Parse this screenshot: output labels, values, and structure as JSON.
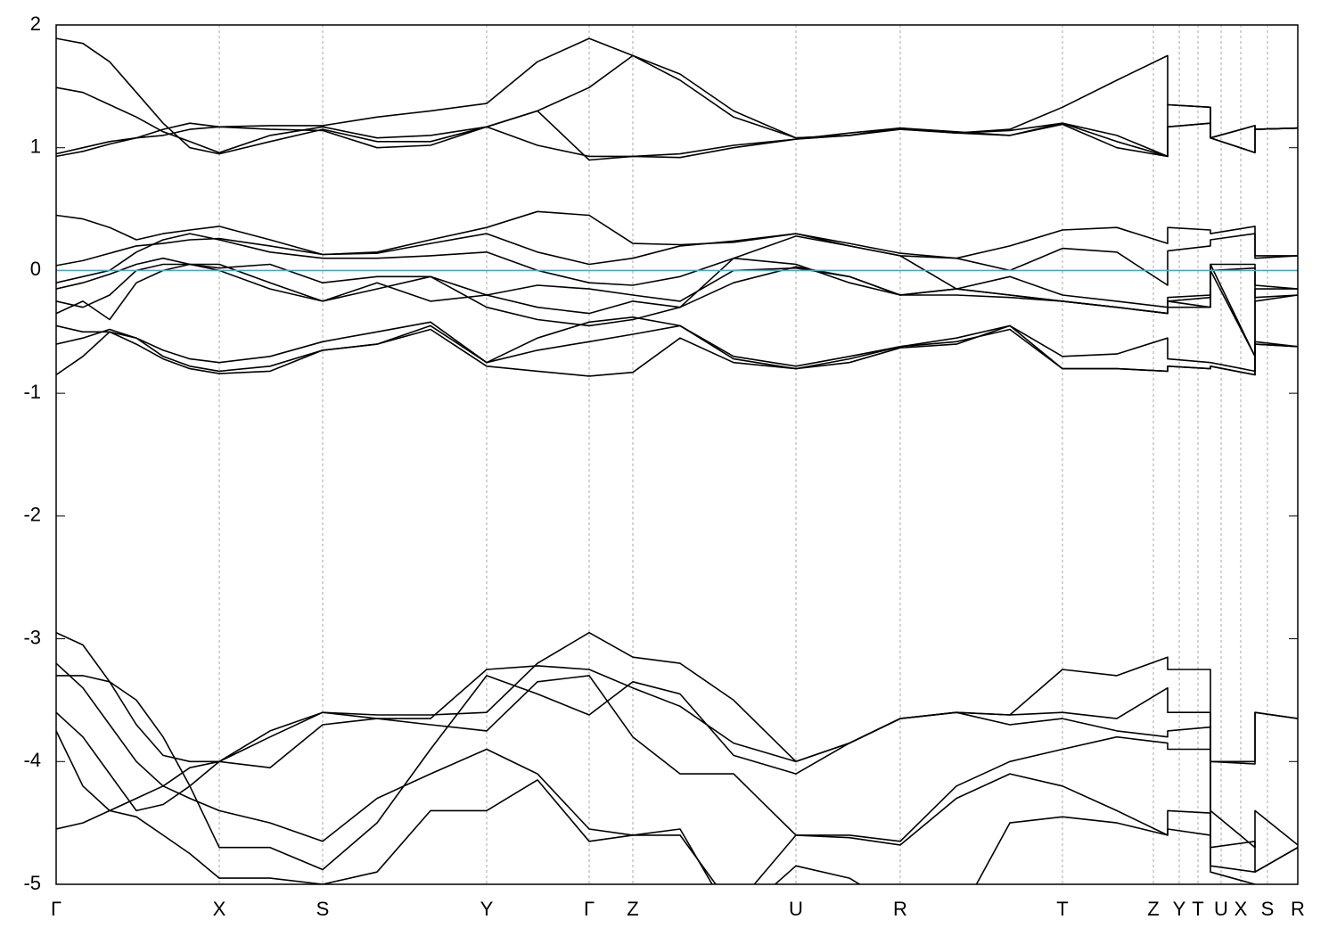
{
  "chart_data": {
    "type": "line",
    "x": [
      0,
      30,
      60,
      90,
      120,
      150,
      183,
      240,
      299,
      360,
      420,
      483,
      540,
      598,
      647,
      700,
      760,
      830,
      890,
      947,
      1010,
      1070,
      1129,
      1190,
      1247,
      1247,
      1295,
      1295,
      1345,
      1345,
      1393
    ],
    "xlim": [
      0,
      1393
    ],
    "xticks": [
      {
        "value": 0,
        "label": "Γ"
      },
      {
        "value": 183,
        "label": "X"
      },
      {
        "value": 299,
        "label": "S"
      },
      {
        "value": 483,
        "label": "Y"
      },
      {
        "value": 598,
        "label": "Γ"
      },
      {
        "value": 647,
        "label": "Z"
      },
      {
        "value": 830,
        "label": "U"
      },
      {
        "value": 947,
        "label": "R"
      },
      {
        "value": 1129,
        "label": "T"
      },
      {
        "value": 1231,
        "label": "Z"
      },
      {
        "value": 1260,
        "label": "Y"
      },
      {
        "value": 1281,
        "label": "T"
      },
      {
        "value": 1307,
        "label": "U"
      },
      {
        "value": 1329,
        "label": "X"
      },
      {
        "value": 1359,
        "label": "S"
      },
      {
        "value": 1393,
        "label": "R"
      }
    ],
    "ylim": [
      -5,
      2
    ],
    "yticks": [
      -5,
      -4,
      -3,
      -2,
      -1,
      0,
      1,
      2
    ],
    "grid": true,
    "hline": {
      "value": 0,
      "color": "#4aa8c0"
    },
    "series": [
      {
        "color": "#000000",
        "values": [
          1.89,
          1.85,
          1.7,
          1.45,
          1.2,
          1.0,
          0.95,
          1.05,
          1.15,
          1.05,
          1.05,
          1.17,
          1.02,
          0.93,
          0.93,
          0.95,
          1.02,
          1.07,
          1.12,
          1.16,
          1.13,
          1.1,
          1.2,
          1.05,
          0.93,
          1.17,
          1.2,
          1.08,
          0.96,
          1.15,
          1.16
        ]
      },
      {
        "color": "#000000",
        "values": [
          1.49,
          1.45,
          1.35,
          1.25,
          1.13,
          1.05,
          0.96,
          1.1,
          1.17,
          1.08,
          1.1,
          1.17,
          1.3,
          1.49,
          1.75,
          1.6,
          1.3,
          1.08,
          1.1,
          1.15,
          1.12,
          1.15,
          1.33,
          1.55,
          1.75,
          1.35,
          1.33,
          1.08,
          1.18,
          1.15,
          1.16
        ]
      },
      {
        "color": "#000000",
        "values": [
          0.93,
          0.97,
          1.03,
          1.08,
          1.15,
          1.2,
          1.17,
          1.18,
          1.18,
          1.25,
          1.3,
          1.36,
          1.7,
          1.89,
          1.75,
          1.55,
          1.25,
          1.08,
          1.1,
          1.16,
          1.12,
          1.14,
          1.2,
          1.1,
          0.93,
          1.17,
          1.2,
          1.08,
          0.96,
          1.15,
          1.16
        ]
      },
      {
        "color": "#000000",
        "values": [
          0.95,
          1.0,
          1.05,
          1.08,
          1.1,
          1.15,
          1.17,
          1.15,
          1.14,
          1.0,
          1.02,
          1.17,
          1.3,
          0.9,
          0.93,
          0.92,
          1.0,
          1.07,
          1.1,
          1.16,
          1.12,
          1.1,
          1.19,
          1.0,
          0.93,
          1.35,
          1.33,
          1.08,
          1.18,
          1.15,
          1.16
        ]
      },
      {
        "color": "#000000",
        "values": [
          0.45,
          0.42,
          0.35,
          0.25,
          0.3,
          0.33,
          0.36,
          0.25,
          0.13,
          0.15,
          0.25,
          0.35,
          0.48,
          0.45,
          0.22,
          0.21,
          0.23,
          0.3,
          0.2,
          0.12,
          0.1,
          0.2,
          0.33,
          0.35,
          0.22,
          0.35,
          0.33,
          0.3,
          0.36,
          0.12,
          0.12
        ]
      },
      {
        "color": "#000000",
        "values": [
          0.04,
          0.08,
          0.14,
          0.2,
          0.22,
          0.25,
          0.26,
          0.2,
          0.13,
          0.14,
          0.22,
          0.3,
          0.15,
          0.05,
          0.1,
          0.2,
          0.24,
          0.3,
          0.22,
          0.14,
          0.1,
          0.0,
          0.18,
          0.15,
          -0.12,
          0.16,
          0.2,
          0.25,
          0.3,
          0.1,
          0.12
        ]
      },
      {
        "color": "#000000",
        "values": [
          -0.1,
          -0.05,
          0.0,
          0.15,
          0.25,
          0.3,
          0.25,
          0.15,
          0.1,
          0.1,
          0.12,
          0.15,
          0.0,
          -0.1,
          -0.12,
          -0.05,
          0.1,
          0.28,
          0.2,
          0.12,
          -0.15,
          -0.05,
          -0.2,
          -0.25,
          -0.3,
          -0.25,
          -0.22,
          0.0,
          0.02,
          -0.12,
          -0.15
        ]
      },
      {
        "color": "#000000",
        "values": [
          -0.15,
          -0.1,
          -0.03,
          0.05,
          0.1,
          0.05,
          0.02,
          0.05,
          -0.1,
          -0.05,
          -0.05,
          -0.2,
          -0.12,
          -0.15,
          -0.2,
          -0.25,
          0.0,
          0.02,
          -0.05,
          -0.2,
          -0.2,
          -0.22,
          -0.25,
          -0.3,
          -0.35,
          -0.22,
          -0.2,
          0.05,
          0.05,
          -0.22,
          -0.2
        ]
      },
      {
        "color": "#000000",
        "values": [
          -0.25,
          -0.3,
          -0.2,
          0.0,
          0.05,
          0.05,
          0.0,
          -0.15,
          -0.25,
          -0.1,
          -0.25,
          -0.2,
          -0.3,
          -0.35,
          -0.25,
          -0.3,
          -0.1,
          0.03,
          -0.05,
          -0.2,
          -0.15,
          -0.2,
          -0.25,
          -0.3,
          -0.35,
          -0.25,
          -0.3,
          0.05,
          -0.7,
          -0.25,
          -0.2
        ]
      },
      {
        "color": "#000000",
        "values": [
          -0.35,
          -0.25,
          -0.4,
          -0.1,
          0.0,
          0.05,
          0.05,
          -0.1,
          -0.25,
          -0.15,
          -0.05,
          -0.3,
          -0.4,
          -0.45,
          -0.4,
          -0.3,
          0.1,
          0.05,
          -0.1,
          -0.2,
          -0.15,
          -0.2,
          -0.25,
          -0.3,
          -0.35,
          -0.3,
          -0.3,
          0.0,
          -0.7,
          -0.15,
          -0.15
        ]
      },
      {
        "color": "#000000",
        "values": [
          -0.45,
          -0.5,
          -0.5,
          -0.55,
          -0.65,
          -0.72,
          -0.75,
          -0.7,
          -0.58,
          -0.5,
          -0.42,
          -0.75,
          -0.55,
          -0.42,
          -0.38,
          -0.45,
          -0.7,
          -0.78,
          -0.7,
          -0.62,
          -0.55,
          -0.45,
          -0.7,
          -0.68,
          -0.55,
          -0.72,
          -0.75,
          -0.75,
          -0.82,
          -0.58,
          -0.62
        ]
      },
      {
        "color": "#000000",
        "values": [
          -0.6,
          -0.55,
          -0.48,
          -0.55,
          -0.7,
          -0.78,
          -0.82,
          -0.78,
          -0.65,
          -0.6,
          -0.45,
          -0.75,
          -0.65,
          -0.58,
          -0.52,
          -0.45,
          -0.72,
          -0.8,
          -0.72,
          -0.62,
          -0.58,
          -0.48,
          -0.8,
          -0.8,
          -0.82,
          -0.78,
          -0.8,
          -0.78,
          -0.85,
          -0.6,
          -0.62
        ]
      },
      {
        "color": "#000000",
        "values": [
          -0.85,
          -0.7,
          -0.5,
          -0.6,
          -0.72,
          -0.8,
          -0.84,
          -0.82,
          -0.65,
          -0.6,
          -0.48,
          -0.78,
          -0.82,
          -0.86,
          -0.83,
          -0.55,
          -0.75,
          -0.8,
          -0.75,
          -0.63,
          -0.6,
          -0.45,
          -0.8,
          -0.8,
          -0.82,
          -0.78,
          -0.8,
          -0.78,
          -0.85,
          -0.6,
          -0.62
        ]
      },
      {
        "color": "#000000",
        "values": [
          -2.95,
          -3.05,
          -3.35,
          -3.7,
          -3.95,
          -4.0,
          -4.0,
          -3.8,
          -3.6,
          -3.62,
          -3.62,
          -3.6,
          -3.2,
          -2.95,
          -3.15,
          -3.2,
          -3.5,
          -4.0,
          -3.85,
          -3.65,
          -3.6,
          -3.62,
          -3.25,
          -3.3,
          -3.15,
          -3.25,
          -3.25,
          -4.0,
          -4.0,
          -3.6,
          -3.65
        ]
      },
      {
        "color": "#000000",
        "values": [
          -3.2,
          -3.4,
          -3.7,
          -4.0,
          -4.2,
          -4.05,
          -4.0,
          -3.75,
          -3.6,
          -3.65,
          -3.65,
          -3.25,
          -3.22,
          -3.25,
          -3.4,
          -3.55,
          -3.85,
          -4.0,
          -3.85,
          -3.65,
          -3.6,
          -3.62,
          -3.6,
          -3.65,
          -3.4,
          -3.6,
          -3.6,
          -4.0,
          -4.02,
          -3.6,
          -3.65
        ]
      },
      {
        "color": "#000000",
        "values": [
          -3.3,
          -3.3,
          -3.35,
          -3.5,
          -3.8,
          -4.2,
          -4.7,
          -4.7,
          -4.88,
          -4.5,
          -3.9,
          -3.3,
          -3.45,
          -3.62,
          -3.35,
          -3.45,
          -3.95,
          -4.1,
          -3.85,
          -3.65,
          -3.6,
          -3.7,
          -3.65,
          -3.75,
          -3.8,
          -3.75,
          -3.72,
          -4.4,
          -4.7,
          -4.4,
          -4.68
        ]
      },
      {
        "color": "#000000",
        "values": [
          -3.6,
          -3.8,
          -4.1,
          -4.4,
          -4.35,
          -4.2,
          -4.0,
          -4.05,
          -3.7,
          -3.65,
          -3.7,
          -3.75,
          -3.35,
          -3.3,
          -3.8,
          -4.1,
          -4.1,
          -4.6,
          -4.6,
          -4.65,
          -4.2,
          -4.0,
          -3.9,
          -3.8,
          -3.85,
          -3.9,
          -3.9,
          -4.7,
          -4.65,
          -4.9,
          -4.7
        ]
      },
      {
        "color": "#000000",
        "values": [
          -3.75,
          -4.2,
          -4.4,
          -4.3,
          -4.2,
          -4.3,
          -4.4,
          -4.5,
          -4.65,
          -4.3,
          -4.1,
          -3.9,
          -4.1,
          -4.55,
          -4.6,
          -4.6,
          -5.2,
          -4.6,
          -4.62,
          -4.68,
          -4.3,
          -4.1,
          -4.2,
          -4.4,
          -4.6,
          -4.4,
          -4.42,
          -4.85,
          -4.9,
          -4.9,
          -4.7
        ]
      },
      {
        "color": "#000000",
        "values": [
          -4.55,
          -4.5,
          -4.4,
          -4.45,
          -4.6,
          -4.75,
          -4.95,
          -4.95,
          -5.0,
          -4.9,
          -4.4,
          -4.4,
          -4.15,
          -4.65,
          -4.6,
          -4.55,
          -5.3,
          -4.85,
          -4.95,
          -5.2,
          -5.3,
          -4.5,
          -4.45,
          -4.5,
          -4.6,
          -4.55,
          -4.6,
          -4.9,
          -5.0,
          -5.1,
          -5.1
        ]
      }
    ]
  }
}
